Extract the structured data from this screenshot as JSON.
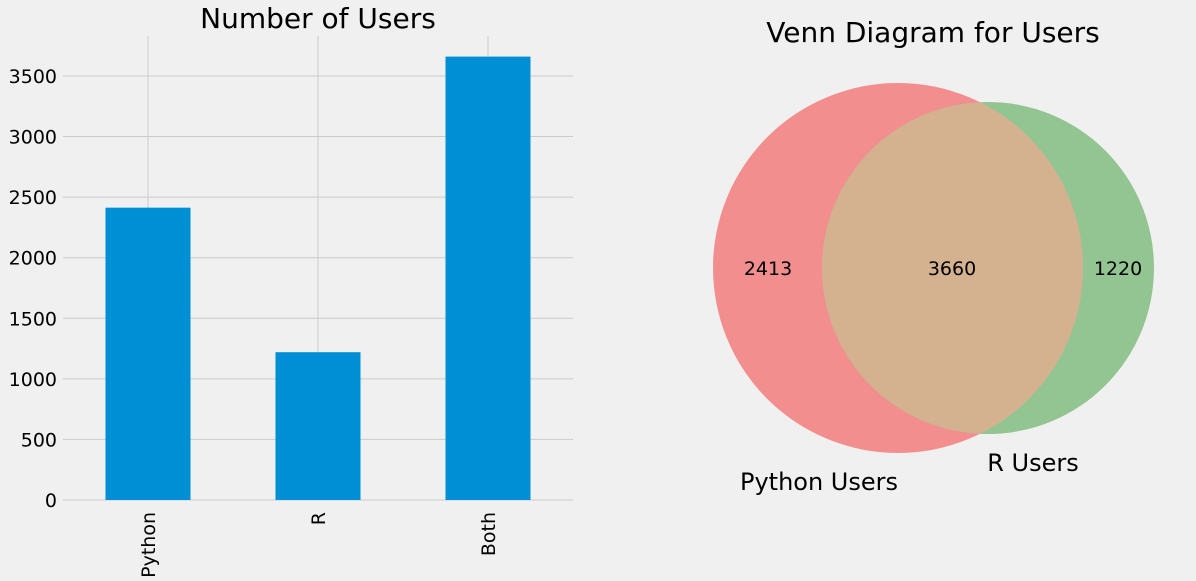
{
  "chart_data": [
    {
      "type": "bar",
      "title": "Number of Users",
      "categories": [
        "Python",
        "R",
        "Both"
      ],
      "values": [
        2413,
        1220,
        3660
      ],
      "ylim": [
        0,
        3830
      ],
      "yticks": [
        "0",
        "500",
        "1000",
        "1500",
        "2000",
        "2500",
        "3000",
        "3500"
      ],
      "grid": true,
      "bar_color": "#008fd5"
    },
    {
      "type": "venn",
      "title": "Venn Diagram for Users",
      "sets": [
        {
          "name": "Python Users",
          "only": 2413,
          "color": "#f28e8e"
        },
        {
          "name": "R Users",
          "only": 1220,
          "color": "#93c593"
        }
      ],
      "intersection": 3660,
      "intersection_color": "#d4b290"
    }
  ]
}
